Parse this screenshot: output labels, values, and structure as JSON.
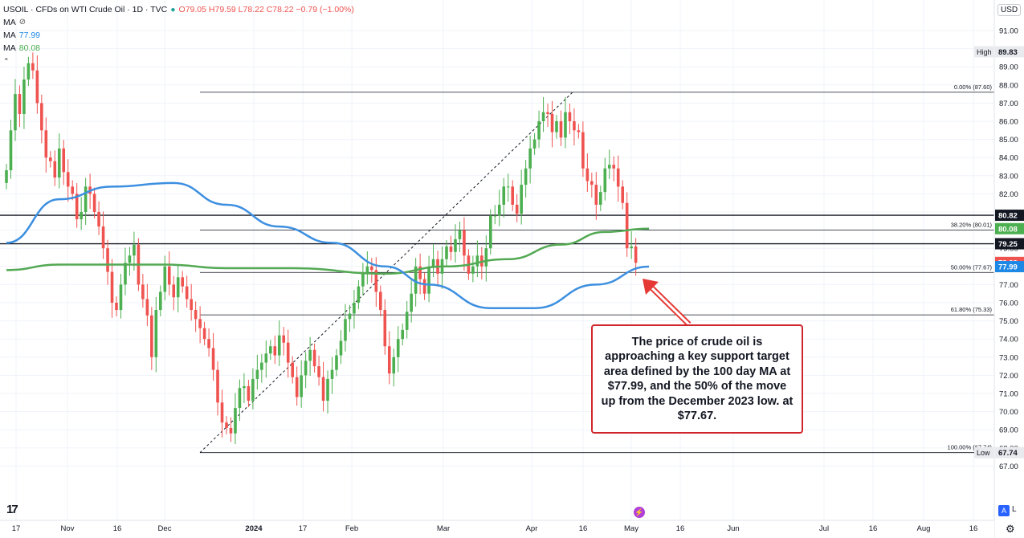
{
  "legend": {
    "symbol": "USOIL · CFDs on WTI Crude Oil · 1D · TVC",
    "ohlc": "O79.05 H79.59 L78.22 C78.22 −0.79 (−1.00%)",
    "ma1": {
      "label": "MA",
      "value": ""
    },
    "ma2": {
      "label": "MA",
      "value": "77.99"
    },
    "ma3": {
      "label": "MA",
      "value": "80.08"
    }
  },
  "currency": "USD",
  "logo": "17",
  "buttons": {
    "auto": "A",
    "log": "L"
  },
  "annotation": "The price of crude oil is approaching a key support target area defined by the 100 day MA at $77.99, and the 50% of the move up from the December 2023 low. at $77.67.",
  "chart_data": {
    "type": "candlestick",
    "symbol": "USOIL",
    "timeframe": "1D",
    "ylim": [
      66.5,
      92
    ],
    "y_ticks": [
      67,
      68,
      69,
      70,
      71,
      72,
      73,
      74,
      75,
      76,
      77,
      78,
      79,
      80,
      81,
      82,
      83,
      84,
      85,
      86,
      87,
      88,
      89,
      90,
      91
    ],
    "x_labels": [
      "17",
      "Nov",
      "16",
      "Dec",
      "2024",
      "17",
      "Feb",
      "Mar",
      "Apr",
      "16",
      "May",
      "16",
      "Jun",
      "Jul",
      "16",
      "Aug",
      "16"
    ],
    "closes": [
      83.3,
      85.5,
      87.5,
      86.4,
      88.3,
      89.2,
      88.8,
      87.0,
      85.5,
      84.0,
      83.8,
      82.9,
      84.5,
      83.2,
      82.4,
      82.0,
      80.6,
      81.0,
      82.4,
      82.0,
      81.0,
      80.2,
      79.0,
      77.7,
      76.0,
      75.6,
      77.0,
      78.2,
      78.6,
      79.2,
      77.0,
      76.2,
      75.3,
      73.0,
      75.6,
      76.6,
      78.0,
      77.0,
      76.3,
      77.4,
      76.9,
      76.2,
      75.6,
      75.1,
      74.6,
      74.0,
      73.5,
      72.3,
      70.5,
      69.4,
      69.1,
      68.8,
      70.2,
      71.3,
      71.4,
      70.6,
      71.8,
      72.3,
      72.7,
      73.2,
      73.6,
      73.1,
      74.2,
      73.8,
      72.7,
      71.9,
      70.8,
      72.0,
      72.8,
      73.4,
      72.5,
      71.9,
      70.6,
      71.8,
      72.3,
      73.1,
      73.9,
      75.1,
      75.4,
      76.0,
      76.9,
      77.6,
      78.0,
      77.8,
      76.6,
      75.6,
      73.6,
      72.1,
      73.0,
      74.0,
      74.5,
      75.5,
      76.5,
      78.0,
      77.3,
      76.5,
      78.0,
      78.4,
      77.6,
      78.4,
      79.1,
      78.8,
      79.5,
      80.0,
      78.6,
      77.6,
      78.0,
      78.6,
      78.0,
      79.0,
      80.8,
      80.8,
      81.4,
      82.4,
      82.4,
      81.4,
      80.9,
      82.5,
      83.4,
      84.5,
      85.0,
      86.0,
      86.5,
      86.4,
      85.4,
      86.0,
      85.1,
      86.5,
      86.0,
      85.5,
      85.4,
      83.4,
      82.7,
      82.5,
      81.4,
      82.1,
      83.4,
      83.6,
      83.4,
      82.4,
      81.5,
      79.0,
      79.1,
      78.2
    ],
    "ma_100": [
      {
        "x": 0,
        "y": 79.3
      },
      {
        "x": 12,
        "y": 81.7
      },
      {
        "x": 24,
        "y": 82.4
      },
      {
        "x": 38,
        "y": 82.6
      },
      {
        "x": 50,
        "y": 81.4
      },
      {
        "x": 62,
        "y": 80.2
      },
      {
        "x": 74,
        "y": 79.3
      },
      {
        "x": 86,
        "y": 78.0
      },
      {
        "x": 96,
        "y": 77.0
      },
      {
        "x": 110,
        "y": 75.7
      },
      {
        "x": 120,
        "y": 75.7
      },
      {
        "x": 134,
        "y": 77.0
      },
      {
        "x": 146,
        "y": 77.99
      }
    ],
    "ma_200": [
      {
        "x": 0,
        "y": 77.8
      },
      {
        "x": 12,
        "y": 78.1
      },
      {
        "x": 36,
        "y": 78.1
      },
      {
        "x": 50,
        "y": 77.9
      },
      {
        "x": 65,
        "y": 77.9
      },
      {
        "x": 86,
        "y": 77.6
      },
      {
        "x": 100,
        "y": 78.0
      },
      {
        "x": 114,
        "y": 78.4
      },
      {
        "x": 126,
        "y": 79.2
      },
      {
        "x": 136,
        "y": 79.9
      },
      {
        "x": 146,
        "y": 80.08
      }
    ],
    "fib_levels": [
      {
        "label": "0.00% (87.60)",
        "value": 87.6
      },
      {
        "label": "38.20% (80.01)",
        "value": 80.01
      },
      {
        "label": "50.00% (77.67)",
        "value": 77.67
      },
      {
        "label": "61.80% (75.33)",
        "value": 75.33
      },
      {
        "label": "100.00% (67.74)",
        "value": 67.74
      }
    ],
    "horizontal_lines": [
      80.82,
      79.25
    ],
    "price_tags": [
      {
        "value": 89.83,
        "text": "89.83",
        "label": "High",
        "color": "#e8eaed",
        "text_color": "#131722"
      },
      {
        "value": 80.82,
        "text": "80.82",
        "color": "#131722",
        "text_color": "#ffffff"
      },
      {
        "value": 80.08,
        "text": "80.08",
        "color": "#4caf50",
        "text_color": "#ffffff"
      },
      {
        "value": 79.25,
        "text": "79.25",
        "color": "#131722",
        "text_color": "#ffffff"
      },
      {
        "value": 78.22,
        "text": "78.22",
        "color": "#ef5350",
        "text_color": "#ffffff"
      },
      {
        "value": 77.99,
        "text": "77.99",
        "color": "#1e88e5",
        "text_color": "#ffffff"
      },
      {
        "value": 67.74,
        "text": "67.74",
        "label": "Low",
        "color": "#e8eaed",
        "text_color": "#131722"
      }
    ],
    "colors": {
      "up": "#26a69a",
      "up_alt": "#4caf50",
      "down": "#ef5350",
      "ma_100": "#3d8fe0",
      "ma_200": "#53a953",
      "fib": "#131722",
      "arrow": "#e53935"
    }
  }
}
